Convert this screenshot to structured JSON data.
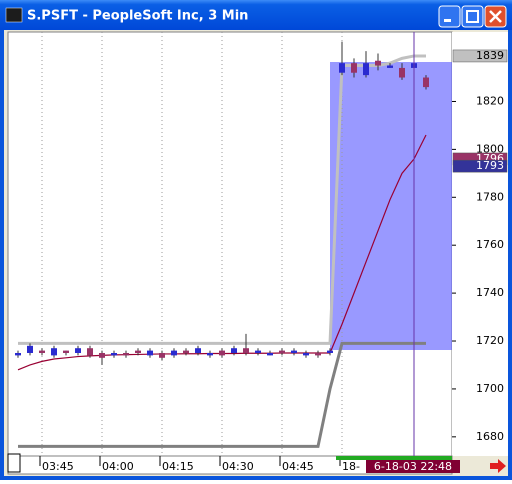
{
  "window": {
    "title": "S.PSFT - PeopleSoft Inc, 3 Min"
  },
  "chart_data": {
    "type": "candlestick",
    "categories": [
      null,
      null,
      "03:45",
      null,
      null,
      null,
      null,
      "04:00",
      null,
      null,
      null,
      null,
      "04:15",
      null,
      null,
      null,
      null,
      "04:30",
      null,
      null,
      null,
      null,
      "04:45",
      null,
      null,
      null,
      null,
      "18-",
      null,
      null,
      null,
      null,
      null,
      null,
      null
    ],
    "open": [
      1714,
      1715,
      1716,
      1714,
      1716,
      1715,
      1717,
      1715,
      1714,
      1715,
      1716,
      1714,
      1715,
      1714,
      1716,
      1715,
      1714,
      1716,
      1715,
      1717,
      1715,
      1714,
      1716,
      1715,
      1714,
      1715,
      1715,
      1832,
      1836,
      1831,
      1837,
      1834,
      1834,
      1834,
      1830
    ],
    "high": [
      1716,
      1719,
      1717,
      1718,
      1716,
      1718,
      1718,
      1716,
      1716,
      1716,
      1717,
      1717,
      1716,
      1717,
      1717,
      1718,
      1716,
      1717,
      1718,
      1723,
      1717,
      1716,
      1717,
      1717,
      1716,
      1716,
      1717,
      1845,
      1838,
      1841,
      1840,
      1836,
      1836,
      1838,
      1831
    ],
    "low": [
      1713,
      1714,
      1714,
      1713,
      1714,
      1714,
      1713,
      1710,
      1713,
      1713,
      1714,
      1713,
      1712,
      1713,
      1714,
      1714,
      1713,
      1713,
      1714,
      1714,
      1714,
      1714,
      1714,
      1714,
      1713,
      1713,
      1714,
      1831,
      1830,
      1830,
      1833,
      1834,
      1829,
      1834,
      1825
    ],
    "close": [
      1715,
      1718,
      1715,
      1717,
      1715,
      1717,
      1714,
      1713,
      1715,
      1714,
      1715,
      1716,
      1713,
      1716,
      1715,
      1717,
      1715,
      1714,
      1717,
      1715,
      1716,
      1715,
      1715,
      1716,
      1715,
      1714,
      1716,
      1836,
      1832,
      1836,
      1835,
      1835,
      1830,
      1836,
      1826
    ],
    "up_color": "#2b2bd0",
    "down_color": "#993366",
    "lines": [
      {
        "color": "#808080",
        "values": [
          1676,
          1676,
          1676,
          1676,
          1676,
          1676,
          1676,
          1676,
          1676,
          1676,
          1676,
          1676,
          1676,
          1676,
          1676,
          1676,
          1676,
          1676,
          1676,
          1676,
          1676,
          1676,
          1676,
          1676,
          1676,
          1676,
          1700,
          1719,
          1719,
          1719,
          1719,
          1719,
          1719,
          1719,
          1719
        ]
      },
      {
        "color": "#c0c0c0",
        "values": [
          1719,
          1719,
          1719,
          1719,
          1719,
          1719,
          1719,
          1719,
          1719,
          1719,
          1719,
          1719,
          1719,
          1719,
          1719,
          1719,
          1719,
          1719,
          1719,
          1719,
          1719,
          1719,
          1719,
          1719,
          1719,
          1719,
          1719,
          1835,
          1835,
          1835,
          1835,
          1836,
          1838,
          1839,
          1839
        ]
      },
      {
        "color": "#990033",
        "values": [
          1708,
          1710,
          1711.5,
          1712.5,
          1713,
          1713.5,
          1713.8,
          1714,
          1714.2,
          1714.3,
          1714.4,
          1714.5,
          1714.6,
          1714.6,
          1714.7,
          1714.7,
          1714.8,
          1714.8,
          1714.8,
          1714.9,
          1714.9,
          1714.9,
          1715,
          1715,
          1715,
          1715,
          1715,
          1727,
          1740,
          1753,
          1766,
          1779,
          1790,
          1796,
          1806
        ]
      }
    ],
    "ylim": [
      1672,
      1849
    ],
    "yticks": [
      1680,
      1700,
      1720,
      1740,
      1760,
      1780,
      1800,
      1820
    ],
    "xgrid": true,
    "price_markers": [
      {
        "value": 1839,
        "color": "#c0c0c0"
      },
      {
        "value": 1796,
        "color": "#993366"
      },
      {
        "value": 1793,
        "color": "#333399"
      }
    ],
    "cursor": {
      "index": 33,
      "label": "6-18-03 22:48"
    }
  }
}
